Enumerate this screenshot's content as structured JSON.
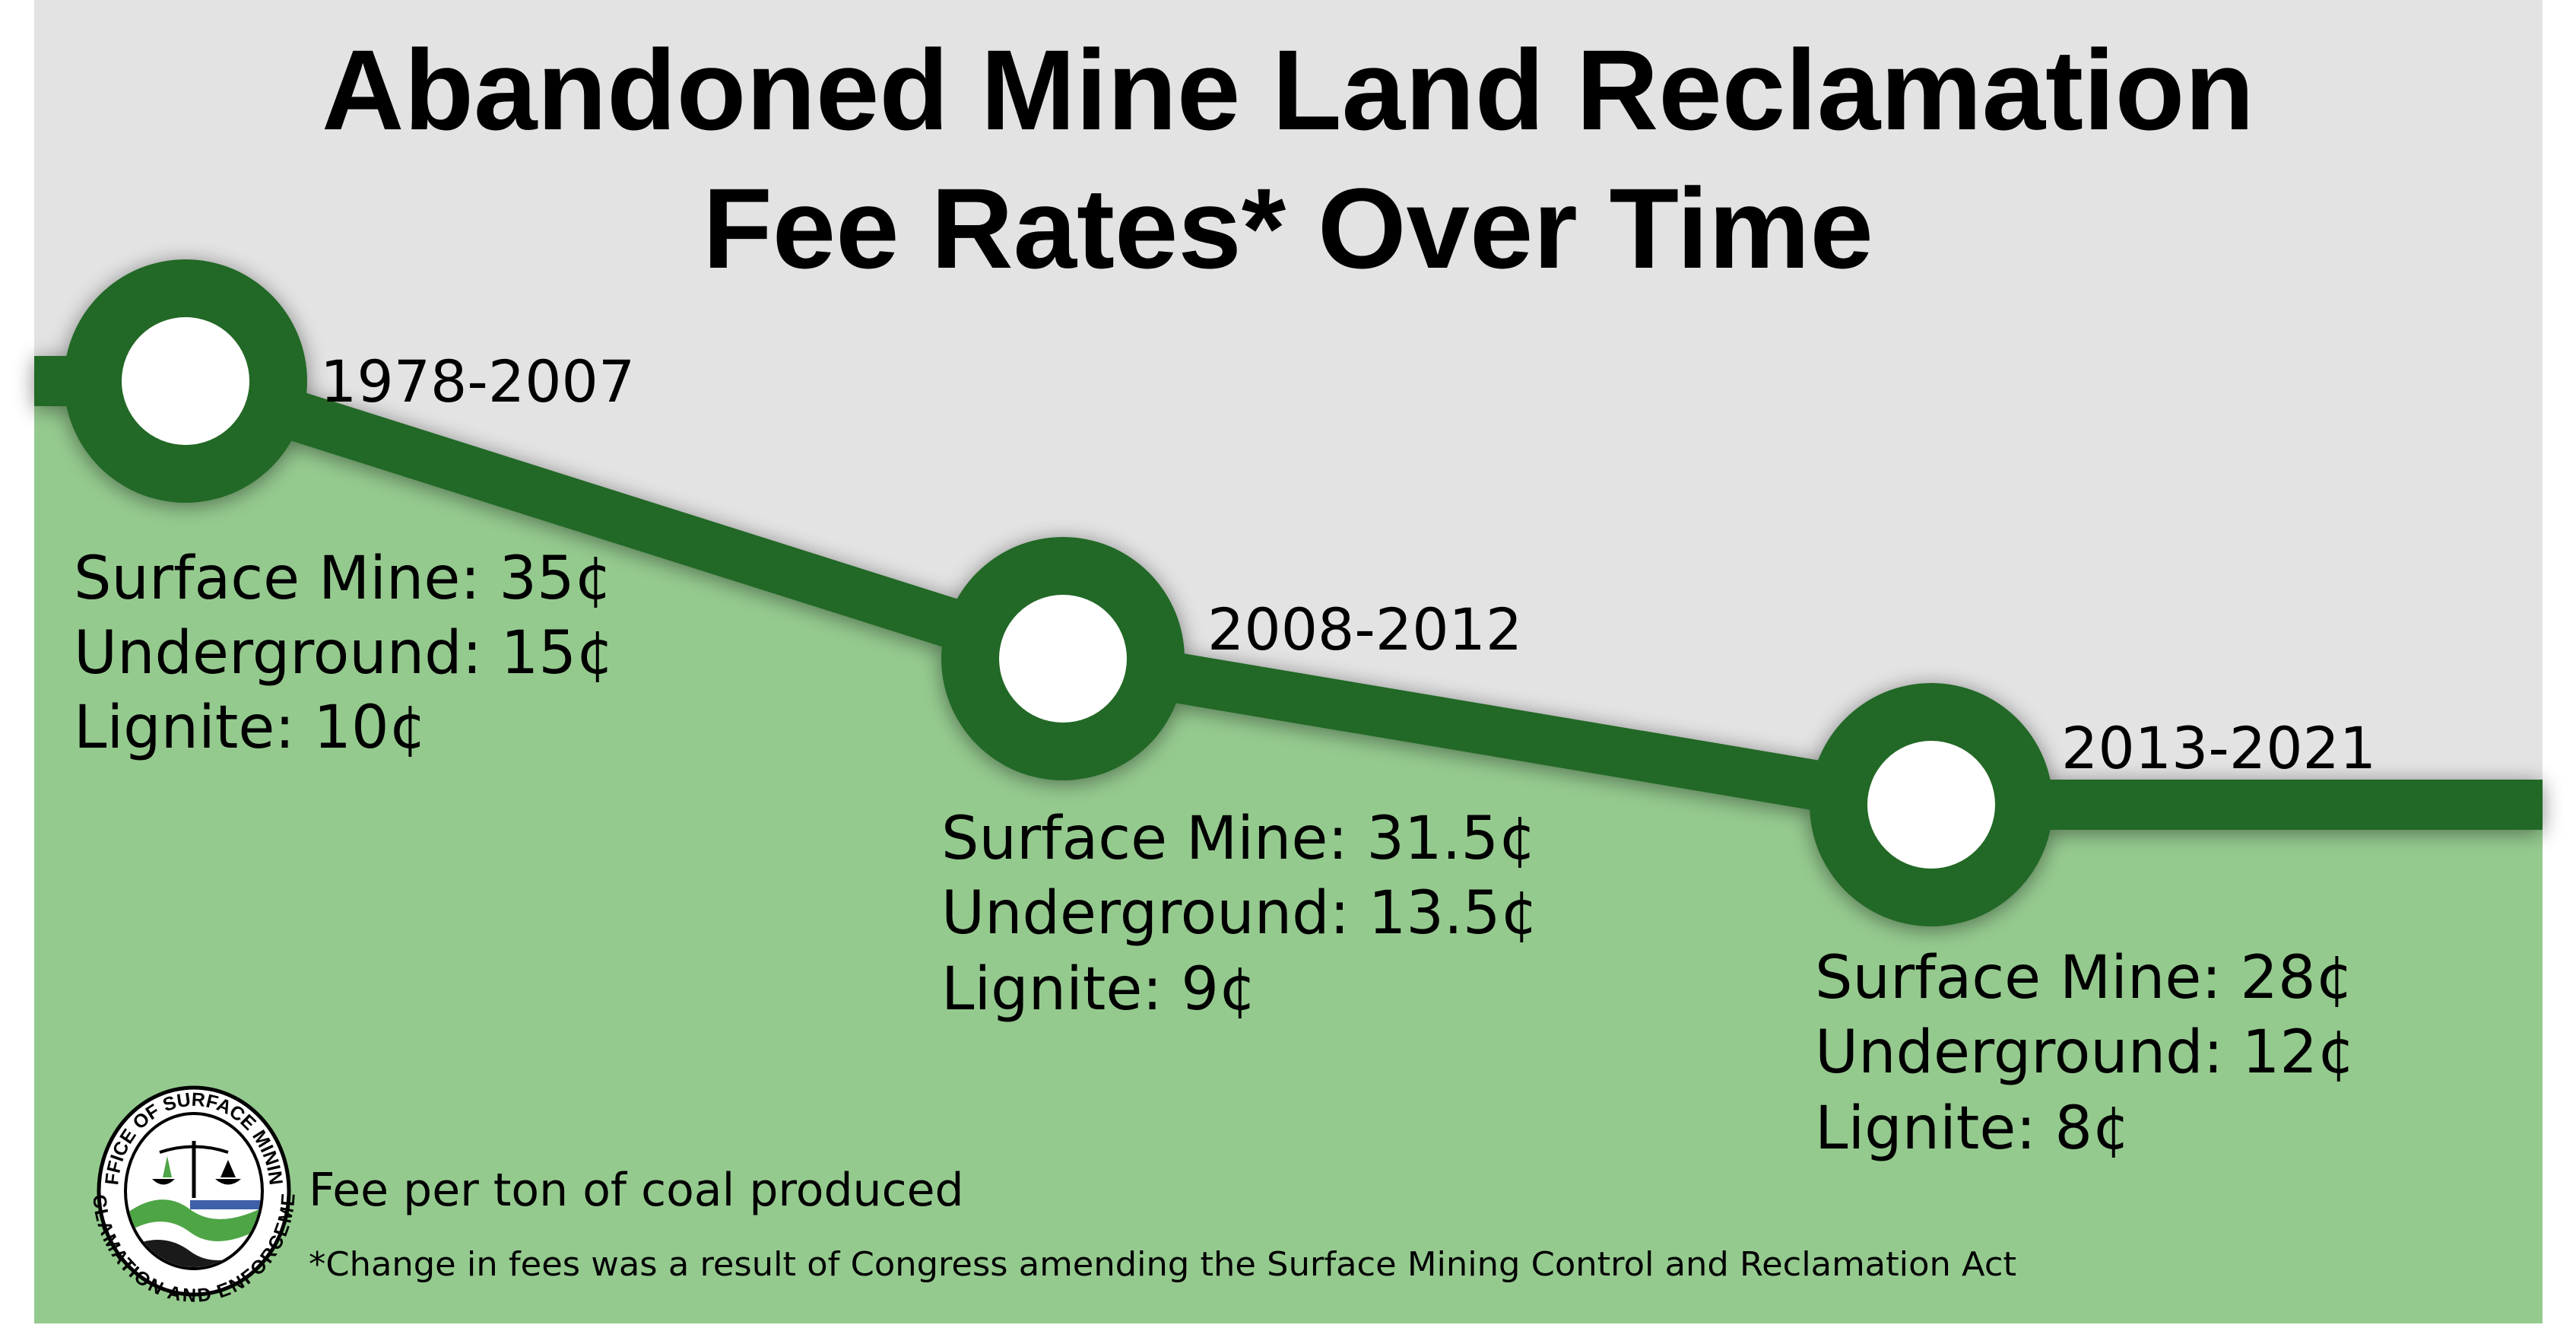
{
  "title": {
    "line1": "Abandoned Mine Land Reclamation",
    "line2": "Fee Rates* Over Time"
  },
  "periods": [
    {
      "label": "1978-2007",
      "rates": [
        "Surface Mine: 35¢",
        "Underground: 15¢",
        "Lignite: 10¢"
      ]
    },
    {
      "label": "2008-2012",
      "rates": [
        "Surface Mine: 31.5¢",
        "Underground: 13.5¢",
        "Lignite: 9¢"
      ]
    },
    {
      "label": "2013-2021",
      "rates": [
        "Surface Mine: 28¢",
        "Underground: 12¢",
        "Lignite: 8¢"
      ]
    }
  ],
  "note": "Fee per ton of coal produced",
  "footnote": "*Change in fees was a result of Congress amending the Surface Mining Control and Reclamation Act",
  "logo": {
    "top_text": "OFFICE OF SURFACE MINING",
    "bottom_text": "RECLAMATION AND ENFORCEMENT"
  },
  "colors": {
    "background": "#e3e3e3",
    "area": "#95ca8f",
    "line": "#216828",
    "node_center": "#ffffff"
  }
}
